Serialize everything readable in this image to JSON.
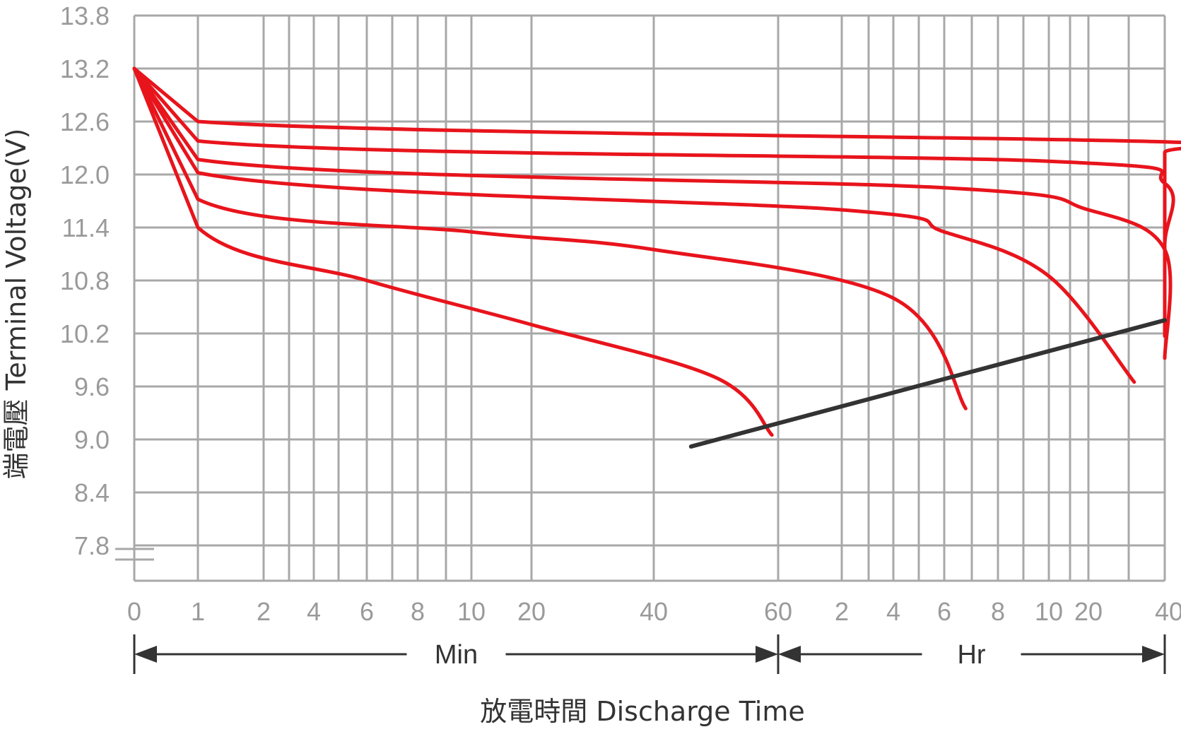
{
  "chart_data": {
    "type": "line",
    "title": "",
    "xlabel": "放電時間 Discharge Time",
    "ylabel": "端電壓 Terminal Voltage(V)",
    "ylim": [
      7.4,
      13.8
    ],
    "y_ticks": [
      "13.8",
      "13.2",
      "12.6",
      "12.0",
      "11.4",
      "10.8",
      "10.2",
      "9.6",
      "9.0",
      "8.4",
      "7.8"
    ],
    "x_scale": "piecewise log-like time axis (minutes then hours)",
    "x_ticks": [
      {
        "label": "0",
        "unit": "min"
      },
      {
        "label": "1",
        "unit": "min"
      },
      {
        "label": "2",
        "unit": "min"
      },
      {
        "label": "4",
        "unit": "min"
      },
      {
        "label": "6",
        "unit": "min"
      },
      {
        "label": "8",
        "unit": "min"
      },
      {
        "label": "10",
        "unit": "min"
      },
      {
        "label": "20",
        "unit": "min"
      },
      {
        "label": "40",
        "unit": "min"
      },
      {
        "label": "60",
        "unit": "min"
      },
      {
        "label": "2",
        "unit": "hr"
      },
      {
        "label": "4",
        "unit": "hr"
      },
      {
        "label": "6",
        "unit": "hr"
      },
      {
        "label": "8",
        "unit": "hr"
      },
      {
        "label": "10",
        "unit": "hr"
      },
      {
        "label": "20",
        "unit": "hr"
      },
      {
        "label": "40",
        "unit": "hr"
      }
    ],
    "time_spans": [
      {
        "label": "Min",
        "from_tick": 0,
        "to_tick": 9
      },
      {
        "label": "Hr",
        "from_tick": 9,
        "to_tick": 16
      }
    ],
    "series": [
      {
        "color": "#e8141c",
        "points": [
          [
            0,
            13.2
          ],
          [
            1,
            11.4
          ],
          [
            4,
            10.8
          ],
          [
            7,
            10.3
          ],
          [
            8.5,
            9.7
          ],
          [
            8.95,
            9.05
          ]
        ]
      },
      {
        "color": "#e8141c",
        "points": [
          [
            0,
            13.2
          ],
          [
            1,
            11.72
          ],
          [
            6,
            11.35
          ],
          [
            8,
            11.15
          ],
          [
            11,
            10.6
          ],
          [
            12.4,
            9.35
          ]
        ]
      },
      {
        "color": "#e8141c",
        "points": [
          [
            0,
            13.2
          ],
          [
            1,
            12.02
          ],
          [
            10,
            11.6
          ],
          [
            12,
            11.35
          ],
          [
            14,
            10.85
          ],
          [
            15.6,
            9.65
          ]
        ]
      },
      {
        "color": "#e8141c",
        "points": [
          [
            0,
            13.2
          ],
          [
            1,
            12.17
          ],
          [
            12,
            11.85
          ],
          [
            15,
            11.6
          ],
          [
            17,
            11.15
          ],
          [
            18.3,
            9.92
          ]
        ]
      },
      {
        "color": "#e8141c",
        "points": [
          [
            0,
            13.2
          ],
          [
            1,
            12.38
          ],
          [
            14,
            12.15
          ],
          [
            17,
            11.9
          ],
          [
            20,
            11.2
          ],
          [
            21.3,
            10.17
          ]
        ]
      },
      {
        "color": "#e8141c",
        "points": [
          [
            0,
            13.2
          ],
          [
            1,
            12.6
          ],
          [
            16,
            12.37
          ],
          [
            18,
            12.25
          ],
          [
            20,
            11.8
          ],
          [
            22.2,
            10.22
          ]
        ]
      }
    ],
    "cutoff_line": {
      "color": "#333333",
      "points": [
        [
          8.3,
          8.92
        ],
        [
          24,
          10.35
        ]
      ]
    },
    "grid": true,
    "legend": "none"
  }
}
